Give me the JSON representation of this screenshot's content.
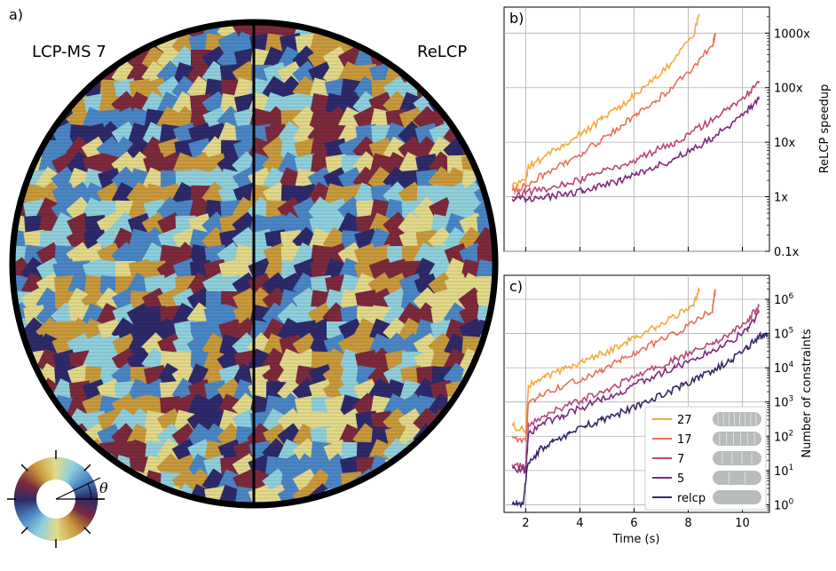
{
  "panel_a": {
    "panel_label": "a)",
    "left_label": "LCP-MS 7",
    "right_label": "ReLCP",
    "angle_symbol": "θ",
    "colors": {
      "left_label": "#b3406a",
      "right_label": "#3a1f5e",
      "palette": [
        "#2e2a6b",
        "#4a86c5",
        "#8fd0dc",
        "#e2d98a",
        "#c99a3c",
        "#7c2a3c"
      ]
    }
  },
  "chart_data": [
    {
      "type": "line",
      "panel_label": "b)",
      "xlabel": "",
      "ylabel": "ReLCP speedup",
      "xlim": [
        1.2,
        11.0
      ],
      "ylim": [
        0.1,
        3000
      ],
      "yscale": "log",
      "xticks": [
        2,
        4,
        6,
        8,
        10
      ],
      "yticks": [
        0.1,
        1,
        10,
        100,
        1000
      ],
      "yticklabels": [
        "0.1x",
        "1x",
        "10x",
        "100x",
        "1000x"
      ],
      "grid": true,
      "series": [
        {
          "key": "27",
          "color": "#f6a93b",
          "x": [
            1.5,
            2.0,
            2.1,
            2.7,
            3.4,
            4.1,
            4.8,
            5.5,
            6.1,
            6.8,
            7.5,
            8.2,
            8.4
          ],
          "y": [
            1.5,
            2.0,
            3.5,
            5.5,
            9,
            15,
            26,
            45,
            80,
            150,
            330,
            900,
            2200
          ]
        },
        {
          "key": "17",
          "color": "#e8705a",
          "x": [
            1.5,
            2.0,
            2.7,
            3.4,
            4.1,
            4.8,
            5.5,
            6.1,
            6.8,
            7.5,
            8.2,
            8.9,
            9.0
          ],
          "y": [
            1.3,
            1.6,
            2.6,
            4.0,
            6.5,
            11,
            20,
            34,
            58,
            110,
            250,
            600,
            950
          ]
        },
        {
          "key": "7",
          "color": "#b8487a",
          "x": [
            1.5,
            2.0,
            2.7,
            3.4,
            4.1,
            4.8,
            5.5,
            6.1,
            6.8,
            7.5,
            8.2,
            8.9,
            9.6,
            10.2,
            10.6
          ],
          "y": [
            1.0,
            1.2,
            1.4,
            1.7,
            2.1,
            2.8,
            3.6,
            5.0,
            7.0,
            10,
            16,
            25,
            45,
            80,
            120
          ]
        },
        {
          "key": "5",
          "color": "#7d2c7a",
          "x": [
            1.5,
            2.0,
            2.7,
            3.4,
            4.1,
            4.8,
            5.5,
            6.1,
            6.8,
            7.5,
            8.2,
            8.9,
            9.6,
            10.2,
            10.6
          ],
          "y": [
            0.9,
            0.9,
            1.0,
            1.1,
            1.3,
            1.6,
            2.0,
            2.6,
            3.5,
            5.0,
            7.5,
            12,
            22,
            40,
            60
          ]
        }
      ]
    },
    {
      "type": "line",
      "panel_label": "c)",
      "xlabel": "Time (s)",
      "ylabel": "Number of constraints",
      "xlim": [
        1.2,
        11.0
      ],
      "ylim": [
        0.6,
        5000000
      ],
      "yscale": "log",
      "xticks": [
        2,
        4,
        6,
        8,
        10
      ],
      "xticklabels": [
        "2",
        "4",
        "6",
        "8",
        "10"
      ],
      "yticks": [
        1,
        10,
        100,
        1000,
        10000,
        100000,
        1000000
      ],
      "ytick_exponents": [
        "0",
        "1",
        "2",
        "3",
        "4",
        "5",
        "6"
      ],
      "grid": true,
      "legend_position": "bottom-right",
      "series": [
        {
          "name": "27",
          "color": "#f6a93b",
          "x": [
            1.5,
            2.0,
            2.1,
            2.7,
            3.4,
            4.1,
            4.8,
            5.5,
            6.1,
            6.8,
            7.5,
            8.2,
            8.4
          ],
          "y": [
            200,
            150,
            3000,
            5000,
            9000,
            15000,
            25000,
            45000,
            80000,
            150000,
            300000,
            700000,
            2000000
          ]
        },
        {
          "name": "17",
          "color": "#e8705a",
          "x": [
            1.5,
            2.0,
            2.1,
            2.7,
            3.4,
            4.1,
            4.8,
            5.5,
            6.1,
            6.8,
            7.5,
            8.2,
            8.9,
            9.0
          ],
          "y": [
            90,
            70,
            900,
            1800,
            3000,
            5000,
            9000,
            16000,
            30000,
            55000,
            100000,
            200000,
            500000,
            2000000
          ]
        },
        {
          "name": "7",
          "color": "#b8487a",
          "x": [
            1.5,
            2.0,
            2.1,
            2.7,
            3.4,
            4.1,
            4.8,
            5.5,
            6.1,
            6.8,
            7.5,
            8.2,
            8.9,
            9.6,
            10.2,
            10.6
          ],
          "y": [
            15,
            12,
            200,
            400,
            700,
            1200,
            2000,
            3500,
            6000,
            10000,
            18000,
            30000,
            55000,
            100000,
            250000,
            600000
          ]
        },
        {
          "name": "5",
          "color": "#7d2c7a",
          "x": [
            1.5,
            2.0,
            2.1,
            2.7,
            3.4,
            4.1,
            4.8,
            5.5,
            6.1,
            6.8,
            7.5,
            8.2,
            8.9,
            9.6,
            10.2,
            10.6
          ],
          "y": [
            12,
            10,
            120,
            250,
            400,
            700,
            1200,
            2000,
            3500,
            6000,
            10000,
            18000,
            32000,
            60000,
            150000,
            400000
          ]
        },
        {
          "name": "relcp",
          "color": "#3b2764",
          "x": [
            1.5,
            1.9,
            2.05,
            2.5,
            3.0,
            3.6,
            4.2,
            4.8,
            5.4,
            6.0,
            6.6,
            7.2,
            7.8,
            8.4,
            9.0,
            9.6,
            10.2,
            10.6,
            10.9
          ],
          "y": [
            1,
            1,
            12,
            40,
            70,
            120,
            200,
            300,
            450,
            700,
            1100,
            1800,
            3000,
            5000,
            9000,
            17000,
            40000,
            80000,
            100000
          ]
        }
      ]
    }
  ]
}
